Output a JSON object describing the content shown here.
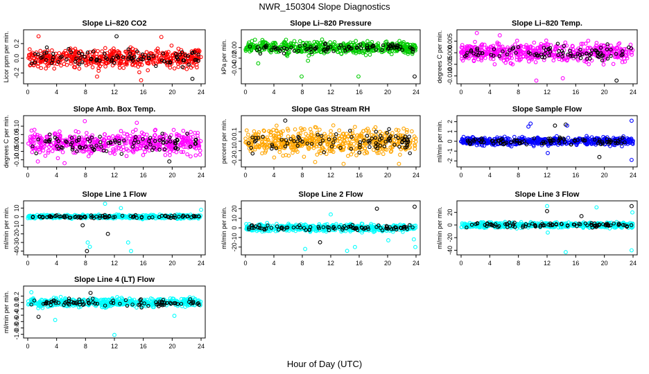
{
  "title": "NWR_150304  Slope Diagnostics",
  "xlabel": "Hour of Day (UTC)",
  "chart_data": [
    {
      "type": "scatter",
      "title": "Slope Li–820 CO2",
      "ylabel": "Licor ppm per min.",
      "color": "#ff0000",
      "xlim": [
        0,
        24
      ],
      "ylim": [
        -0.32,
        0.36
      ],
      "xticks": [
        0,
        4,
        8,
        12,
        16,
        20,
        24
      ],
      "yticks": [
        -0.2,
        0.0,
        0.2
      ],
      "ytick_labels": [
        "-0.2",
        "0.0",
        "0.2"
      ],
      "spread": 0.09,
      "outliers": [
        [
          1.5,
          0.3
        ],
        [
          9.6,
          -0.25
        ],
        [
          12.3,
          0.3
        ],
        [
          15.7,
          -0.3
        ],
        [
          18.5,
          0.29
        ],
        [
          22.8,
          -0.28
        ]
      ]
    },
    {
      "type": "scatter",
      "title": "Slope Li–820 Pressure",
      "ylabel": "kPa per min.",
      "color": "#00cc00",
      "xlim": [
        0,
        24
      ],
      "ylim": [
        -0.065,
        0.03
      ],
      "xticks": [
        0,
        4,
        8,
        12,
        16,
        20,
        24
      ],
      "yticks": [
        -0.04,
        -0.02,
        0.0
      ],
      "ytick_labels": [
        "-0.04",
        "-0.02",
        "0.00"
      ],
      "spread": 0.008,
      "outliers": [
        [
          7.9,
          -0.055
        ],
        [
          15.9,
          -0.055
        ],
        [
          23.8,
          -0.055
        ],
        [
          1.8,
          -0.03
        ],
        [
          8.8,
          -0.025
        ]
      ]
    },
    {
      "type": "scatter",
      "title": "Slope Li–820 Temp.",
      "ylabel": "degrees C per min.",
      "color": "#ff00ff",
      "xlim": [
        0,
        24
      ],
      "ylim": [
        -0.0125,
        0.009
      ],
      "xticks": [
        0,
        4,
        8,
        12,
        16,
        20,
        24
      ],
      "yticks": [
        -0.01,
        -0.005,
        0.0,
        0.005
      ],
      "ytick_labels": [
        "-0.010",
        "-0.005",
        "0.000",
        "0.005"
      ],
      "spread": 0.0028,
      "outliers": [
        [
          2.2,
          0.0085
        ],
        [
          10.5,
          -0.012
        ],
        [
          21.7,
          -0.012
        ],
        [
          5.4,
          0.0075
        ],
        [
          14.2,
          -0.011
        ]
      ]
    },
    {
      "type": "scatter",
      "title": "Slope Amb. Box Temp.",
      "ylabel": "degrees C per min.",
      "color": "#ff00ff",
      "xlim": [
        0,
        24
      ],
      "ylim": [
        -0.13,
        0.15
      ],
      "xticks": [
        0,
        4,
        8,
        12,
        16,
        20,
        24
      ],
      "yticks": [
        -0.1,
        -0.05,
        0.0,
        0.05,
        0.1
      ],
      "ytick_labels": [
        "-0.10",
        "-0.05",
        "0.00",
        "0.05",
        "0.10"
      ],
      "spread": 0.045,
      "outliers": [
        [
          5.1,
          -0.12
        ],
        [
          1.4,
          -0.11
        ],
        [
          19.6,
          -0.11
        ],
        [
          7.9,
          0.13
        ],
        [
          15.1,
          0.12
        ]
      ]
    },
    {
      "type": "scatter",
      "title": "Slope Gas Stream RH",
      "ylabel": "percent per min.",
      "color": "#ffa500",
      "xlim": [
        0,
        24
      ],
      "ylim": [
        -0.25,
        0.25
      ],
      "xticks": [
        0,
        4,
        8,
        12,
        16,
        20,
        24
      ],
      "yticks": [
        -0.2,
        -0.1,
        0.0,
        0.1
      ],
      "ytick_labels": [
        "-0.2",
        "-0.1",
        "0.0",
        "0.1"
      ],
      "spread": 0.09,
      "outliers": [
        [
          13.8,
          -0.24
        ],
        [
          21.6,
          -0.24
        ],
        [
          5.6,
          0.22
        ],
        [
          9.8,
          -0.22
        ]
      ]
    },
    {
      "type": "scatter",
      "title": "Slope Sample Flow",
      "ylabel": "ml/min per min.",
      "color": "#0000ff",
      "xlim": [
        0,
        24
      ],
      "ylim": [
        -2.4,
        2.4
      ],
      "xticks": [
        0,
        4,
        8,
        12,
        16,
        20,
        24
      ],
      "yticks": [
        -2,
        -1,
        0,
        1,
        2
      ],
      "ytick_labels": [
        "-2",
        "-1",
        "0",
        "1",
        "2"
      ],
      "spread": 0.28,
      "outliers": [
        [
          9.4,
          1.5
        ],
        [
          9.7,
          1.8
        ],
        [
          14.6,
          1.7
        ],
        [
          14.8,
          1.6
        ],
        [
          12.1,
          -1.2
        ],
        [
          19.3,
          -1.6
        ],
        [
          23.8,
          -1.9
        ],
        [
          23.8,
          2.1
        ],
        [
          13.1,
          1.6
        ]
      ]
    },
    {
      "type": "scatter",
      "title": "Slope Line 1 Flow",
      "ylabel": "ml/min per min.",
      "color": "#00ffff",
      "xlim": [
        0,
        24
      ],
      "ylim": [
        -42,
        16
      ],
      "xticks": [
        0,
        4,
        8,
        12,
        16,
        20,
        24
      ],
      "yticks": [
        -40,
        -30,
        -20,
        -10,
        0,
        10
      ],
      "ytick_labels": [
        "-40",
        "-30",
        "-20",
        "-10",
        "0",
        "10"
      ],
      "spread": 1.5,
      "outliers": [
        [
          8.3,
          -30
        ],
        [
          8.6,
          -35
        ],
        [
          8.2,
          -40
        ],
        [
          13.9,
          -30
        ],
        [
          14.3,
          -40
        ],
        [
          11.1,
          -20
        ],
        [
          12.9,
          10
        ],
        [
          10.7,
          15
        ],
        [
          7.6,
          -10
        ],
        [
          24,
          8
        ]
      ]
    },
    {
      "type": "scatter",
      "title": "Slope Line 2 Flow",
      "ylabel": "ml/min per min.",
      "color": "#00ffff",
      "xlim": [
        0,
        24
      ],
      "ylim": [
        -26,
        26
      ],
      "xticks": [
        0,
        4,
        8,
        12,
        16,
        20,
        24
      ],
      "yticks": [
        -20,
        -10,
        0,
        10,
        20
      ],
      "ytick_labels": [
        "-20",
        "-10",
        "0",
        "10",
        "20"
      ],
      "spread": 2.5,
      "outliers": [
        [
          8.4,
          -22
        ],
        [
          14.3,
          -24
        ],
        [
          10.5,
          -15
        ],
        [
          12,
          14
        ],
        [
          20.1,
          -13
        ],
        [
          23.8,
          22
        ],
        [
          23.9,
          -20
        ],
        [
          23.7,
          -12
        ],
        [
          18.5,
          20
        ],
        [
          15.4,
          -20
        ]
      ]
    },
    {
      "type": "scatter",
      "title": "Slope Line 3 Flow",
      "ylabel": "ml/min per min.",
      "color": "#00ffff",
      "xlim": [
        0,
        24
      ],
      "ylim": [
        -44,
        35
      ],
      "xticks": [
        0,
        4,
        8,
        12,
        16,
        20,
        24
      ],
      "yticks": [
        -40,
        -20,
        0,
        20
      ],
      "ytick_labels": [
        "-40",
        "-20",
        "0",
        "20"
      ],
      "spread": 3,
      "outliers": [
        [
          12,
          30
        ],
        [
          12.1,
          -12
        ],
        [
          12,
          22
        ],
        [
          14.6,
          -43
        ],
        [
          18.9,
          28
        ],
        [
          23.8,
          30
        ],
        [
          23.8,
          -40
        ],
        [
          23.9,
          20
        ],
        [
          16.8,
          14
        ]
      ]
    },
    {
      "type": "scatter",
      "title": "Slope Line 4 (LT) Flow",
      "ylabel": "ml/min per min.",
      "color": "#00ffff",
      "xlim": [
        0,
        24
      ],
      "ylim": [
        -1.05,
        0.45
      ],
      "xticks": [
        0,
        4,
        8,
        12,
        16,
        20,
        24
      ],
      "yticks": [
        -1.0,
        -0.8,
        -0.6,
        -0.4,
        -0.2,
        0.0,
        0.2
      ],
      "ytick_labels": [
        "-1.0",
        "-0.8",
        "-0.6",
        "-0.4",
        "-0.2",
        "0.0",
        "0.2"
      ],
      "spread": 0.09,
      "outliers": [
        [
          12,
          -1.02
        ],
        [
          3.8,
          -0.55
        ],
        [
          1.5,
          -0.45
        ],
        [
          20.3,
          -0.42
        ],
        [
          0.5,
          0.32
        ],
        [
          8.7,
          0.3
        ]
      ]
    }
  ]
}
